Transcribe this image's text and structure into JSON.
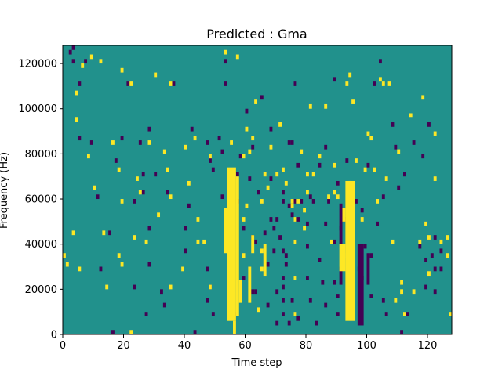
{
  "chart_data": {
    "type": "heatmap",
    "title": "Predicted : Gma",
    "xlabel": "Time step",
    "ylabel": "Frequency (Hz)",
    "xlim": [
      0,
      128
    ],
    "ylim": [
      0,
      128000
    ],
    "xticks": [
      0,
      20,
      40,
      60,
      80,
      100,
      120
    ],
    "yticks": [
      0,
      20000,
      40000,
      60000,
      80000,
      100000,
      120000
    ],
    "xtick_labels": [
      "0",
      "20",
      "40",
      "60",
      "80",
      "100",
      "120"
    ],
    "ytick_labels": [
      "0",
      "20000",
      "40000",
      "60000",
      "80000",
      "100000",
      "120000"
    ],
    "colors": {
      "background": "#21918c",
      "low": "#440154",
      "high": "#fde725"
    },
    "cell_height": 2000,
    "background_level": "mid",
    "low_cells": [
      [
        2,
        124000
      ],
      [
        3,
        126000
      ],
      [
        3,
        120000
      ],
      [
        5,
        110000
      ],
      [
        5,
        86000
      ],
      [
        7,
        120000
      ],
      [
        9,
        84000
      ],
      [
        11,
        60000
      ],
      [
        12,
        28000
      ],
      [
        15,
        44000
      ],
      [
        16,
        0
      ],
      [
        17,
        76000
      ],
      [
        19,
        86000
      ],
      [
        21,
        110000
      ],
      [
        23,
        58000
      ],
      [
        23,
        20000
      ],
      [
        25,
        84000
      ],
      [
        26,
        70000
      ],
      [
        26,
        62000
      ],
      [
        27,
        8000
      ],
      [
        28,
        90000
      ],
      [
        28,
        46000
      ],
      [
        28,
        30000
      ],
      [
        30,
        70000
      ],
      [
        32,
        18000
      ],
      [
        33,
        12000
      ],
      [
        34,
        62000
      ],
      [
        36,
        110000
      ],
      [
        40,
        46000
      ],
      [
        40,
        36000
      ],
      [
        41,
        56000
      ],
      [
        42,
        90000
      ],
      [
        43,
        0
      ],
      [
        47,
        84000
      ],
      [
        47,
        28000
      ],
      [
        47,
        14000
      ],
      [
        48,
        76000
      ],
      [
        48,
        20000
      ],
      [
        49,
        72000
      ],
      [
        49,
        8000
      ],
      [
        51,
        86000
      ],
      [
        52,
        80000
      ],
      [
        52,
        60000
      ],
      [
        53,
        120000
      ],
      [
        53,
        110000
      ],
      [
        53,
        38000
      ],
      [
        56,
        8000
      ],
      [
        57,
        70000
      ],
      [
        57,
        58000
      ],
      [
        58,
        78000
      ],
      [
        59,
        46000
      ],
      [
        59,
        24000
      ],
      [
        60,
        98000
      ],
      [
        61,
        68000
      ],
      [
        62,
        82000
      ],
      [
        62,
        42000
      ],
      [
        62,
        18000
      ],
      [
        63,
        40000
      ],
      [
        63,
        18000
      ],
      [
        64,
        62000
      ],
      [
        65,
        104000
      ],
      [
        66,
        44000
      ],
      [
        67,
        30000
      ],
      [
        67,
        12000
      ],
      [
        68,
        90000
      ],
      [
        68,
        68000
      ],
      [
        68,
        50000
      ],
      [
        69,
        46000
      ],
      [
        69,
        36000
      ],
      [
        70,
        50000
      ],
      [
        70,
        18000
      ],
      [
        70,
        4000
      ],
      [
        71,
        42000
      ],
      [
        72,
        62000
      ],
      [
        72,
        58000
      ],
      [
        72,
        36000
      ],
      [
        72,
        24000
      ],
      [
        72,
        20000
      ],
      [
        72,
        14000
      ],
      [
        72,
        8000
      ],
      [
        73,
        34000
      ],
      [
        73,
        30000
      ],
      [
        74,
        84000
      ],
      [
        74,
        56000
      ],
      [
        74,
        4000
      ],
      [
        75,
        84000
      ],
      [
        75,
        52000
      ],
      [
        75,
        14000
      ],
      [
        76,
        110000
      ],
      [
        76,
        58000
      ],
      [
        76,
        40000
      ],
      [
        77,
        74000
      ],
      [
        77,
        50000
      ],
      [
        77,
        6000
      ],
      [
        78,
        58000
      ],
      [
        80,
        48000
      ],
      [
        80,
        38000
      ],
      [
        80,
        24000
      ],
      [
        81,
        60000
      ],
      [
        81,
        14000
      ],
      [
        82,
        58000
      ],
      [
        83,
        4000
      ],
      [
        84,
        74000
      ],
      [
        84,
        32000
      ],
      [
        85,
        22000
      ],
      [
        86,
        82000
      ],
      [
        86,
        48000
      ],
      [
        86,
        12000
      ],
      [
        87,
        58000
      ],
      [
        89,
        112000
      ],
      [
        89,
        40000
      ],
      [
        89,
        22000
      ],
      [
        90,
        66000
      ],
      [
        90,
        16000
      ],
      [
        90,
        8000
      ],
      [
        91,
        46000
      ],
      [
        92,
        50000
      ],
      [
        93,
        76000
      ],
      [
        94,
        64000
      ],
      [
        94,
        42000
      ],
      [
        95,
        10000
      ],
      [
        96,
        58000
      ],
      [
        97,
        28000
      ],
      [
        98,
        54000
      ],
      [
        98,
        24000
      ],
      [
        99,
        38000
      ],
      [
        100,
        74000
      ],
      [
        101,
        34000
      ],
      [
        101,
        16000
      ],
      [
        102,
        110000
      ],
      [
        103,
        48000
      ],
      [
        104,
        120000
      ],
      [
        105,
        60000
      ],
      [
        105,
        14000
      ],
      [
        106,
        8000
      ],
      [
        108,
        92000
      ],
      [
        109,
        82000
      ],
      [
        110,
        64000
      ],
      [
        111,
        0
      ],
      [
        112,
        70000
      ],
      [
        113,
        8000
      ],
      [
        115,
        84000
      ],
      [
        117,
        38000
      ],
      [
        118,
        78000
      ],
      [
        119,
        32000
      ],
      [
        119,
        20000
      ],
      [
        120,
        92000
      ],
      [
        121,
        34000
      ],
      [
        122,
        42000
      ],
      [
        122,
        28000
      ],
      [
        122,
        18000
      ],
      [
        124,
        36000
      ],
      [
        124,
        28000
      ]
    ],
    "low_blocks": [
      [
        91,
        92,
        40000,
        58000
      ],
      [
        91,
        92,
        22000,
        30000
      ],
      [
        97,
        99,
        4000,
        40000
      ],
      [
        100,
        101,
        22000,
        36000
      ]
    ],
    "high_cells": [
      [
        0,
        34000
      ],
      [
        1,
        30000
      ],
      [
        3,
        44000
      ],
      [
        4,
        106000
      ],
      [
        4,
        94000
      ],
      [
        5,
        28000
      ],
      [
        6,
        118000
      ],
      [
        8,
        78000
      ],
      [
        9,
        122000
      ],
      [
        10,
        64000
      ],
      [
        12,
        120000
      ],
      [
        13,
        44000
      ],
      [
        14,
        20000
      ],
      [
        16,
        84000
      ],
      [
        18,
        72000
      ],
      [
        18,
        34000
      ],
      [
        19,
        58000
      ],
      [
        19,
        30000
      ],
      [
        19,
        116000
      ],
      [
        22,
        110000
      ],
      [
        22,
        0
      ],
      [
        23,
        42000
      ],
      [
        24,
        68000
      ],
      [
        25,
        62000
      ],
      [
        27,
        40000
      ],
      [
        28,
        84000
      ],
      [
        30,
        114000
      ],
      [
        31,
        52000
      ],
      [
        33,
        80000
      ],
      [
        34,
        72000
      ],
      [
        35,
        60000
      ],
      [
        35,
        20000
      ],
      [
        35,
        110000
      ],
      [
        39,
        28000
      ],
      [
        40,
        82000
      ],
      [
        41,
        66000
      ],
      [
        43,
        86000
      ],
      [
        44,
        50000
      ],
      [
        44,
        40000
      ],
      [
        46,
        40000
      ],
      [
        48,
        78000
      ],
      [
        48,
        20000
      ],
      [
        53,
        124000
      ],
      [
        55,
        84000
      ],
      [
        55,
        26000
      ],
      [
        57,
        122000
      ],
      [
        59,
        78000
      ],
      [
        59,
        50000
      ],
      [
        59,
        34000
      ],
      [
        60,
        90000
      ],
      [
        60,
        56000
      ],
      [
        61,
        80000
      ],
      [
        62,
        86000
      ],
      [
        63,
        102000
      ],
      [
        64,
        10000
      ],
      [
        65,
        58000
      ],
      [
        65,
        36000
      ],
      [
        65,
        28000
      ],
      [
        66,
        70000
      ],
      [
        67,
        64000
      ],
      [
        68,
        82000
      ],
      [
        70,
        70000
      ],
      [
        71,
        92000
      ],
      [
        72,
        72000
      ],
      [
        73,
        66000
      ],
      [
        75,
        58000
      ],
      [
        75,
        56000
      ],
      [
        76,
        50000
      ],
      [
        76,
        40000
      ],
      [
        76,
        24000
      ],
      [
        76,
        8000
      ],
      [
        77,
        58000
      ],
      [
        78,
        80000
      ],
      [
        79,
        54000
      ],
      [
        79,
        46000
      ],
      [
        80,
        70000
      ],
      [
        80,
        62000
      ],
      [
        81,
        100000
      ],
      [
        82,
        70000
      ],
      [
        84,
        78000
      ],
      [
        86,
        100000
      ],
      [
        87,
        60000
      ],
      [
        88,
        40000
      ],
      [
        89,
        74000
      ],
      [
        89,
        62000
      ],
      [
        90,
        60000
      ],
      [
        93,
        110000
      ],
      [
        93,
        34000
      ],
      [
        94,
        114000
      ],
      [
        94,
        66000
      ],
      [
        95,
        102000
      ],
      [
        96,
        76000
      ],
      [
        98,
        50000
      ],
      [
        99,
        72000
      ],
      [
        100,
        88000
      ],
      [
        101,
        86000
      ],
      [
        102,
        72000
      ],
      [
        103,
        58000
      ],
      [
        104,
        112000
      ],
      [
        105,
        110000
      ],
      [
        106,
        68000
      ],
      [
        107,
        110000
      ],
      [
        108,
        40000
      ],
      [
        109,
        14000
      ],
      [
        110,
        80000
      ],
      [
        111,
        22000
      ],
      [
        111,
        18000
      ],
      [
        112,
        8000
      ],
      [
        114,
        96000
      ],
      [
        115,
        18000
      ],
      [
        117,
        40000
      ],
      [
        118,
        104000
      ],
      [
        119,
        48000
      ],
      [
        120,
        42000
      ],
      [
        120,
        26000
      ],
      [
        122,
        88000
      ],
      [
        122,
        68000
      ],
      [
        124,
        40000
      ],
      [
        126,
        34000
      ],
      [
        126,
        42000
      ],
      [
        127,
        8000
      ]
    ],
    "high_blocks": [
      [
        54,
        57,
        6000,
        74000
      ],
      [
        53,
        54,
        36000,
        56000
      ],
      [
        57,
        58,
        8000,
        70000
      ],
      [
        56,
        57,
        0,
        6000
      ],
      [
        58,
        59,
        14000,
        24000
      ],
      [
        61,
        62,
        14000,
        30000
      ],
      [
        62,
        63,
        36000,
        44000
      ],
      [
        66,
        67,
        26000,
        40000
      ],
      [
        93,
        96,
        6000,
        68000
      ],
      [
        91,
        93,
        28000,
        40000
      ],
      [
        92,
        93,
        50000,
        56000
      ]
    ]
  }
}
